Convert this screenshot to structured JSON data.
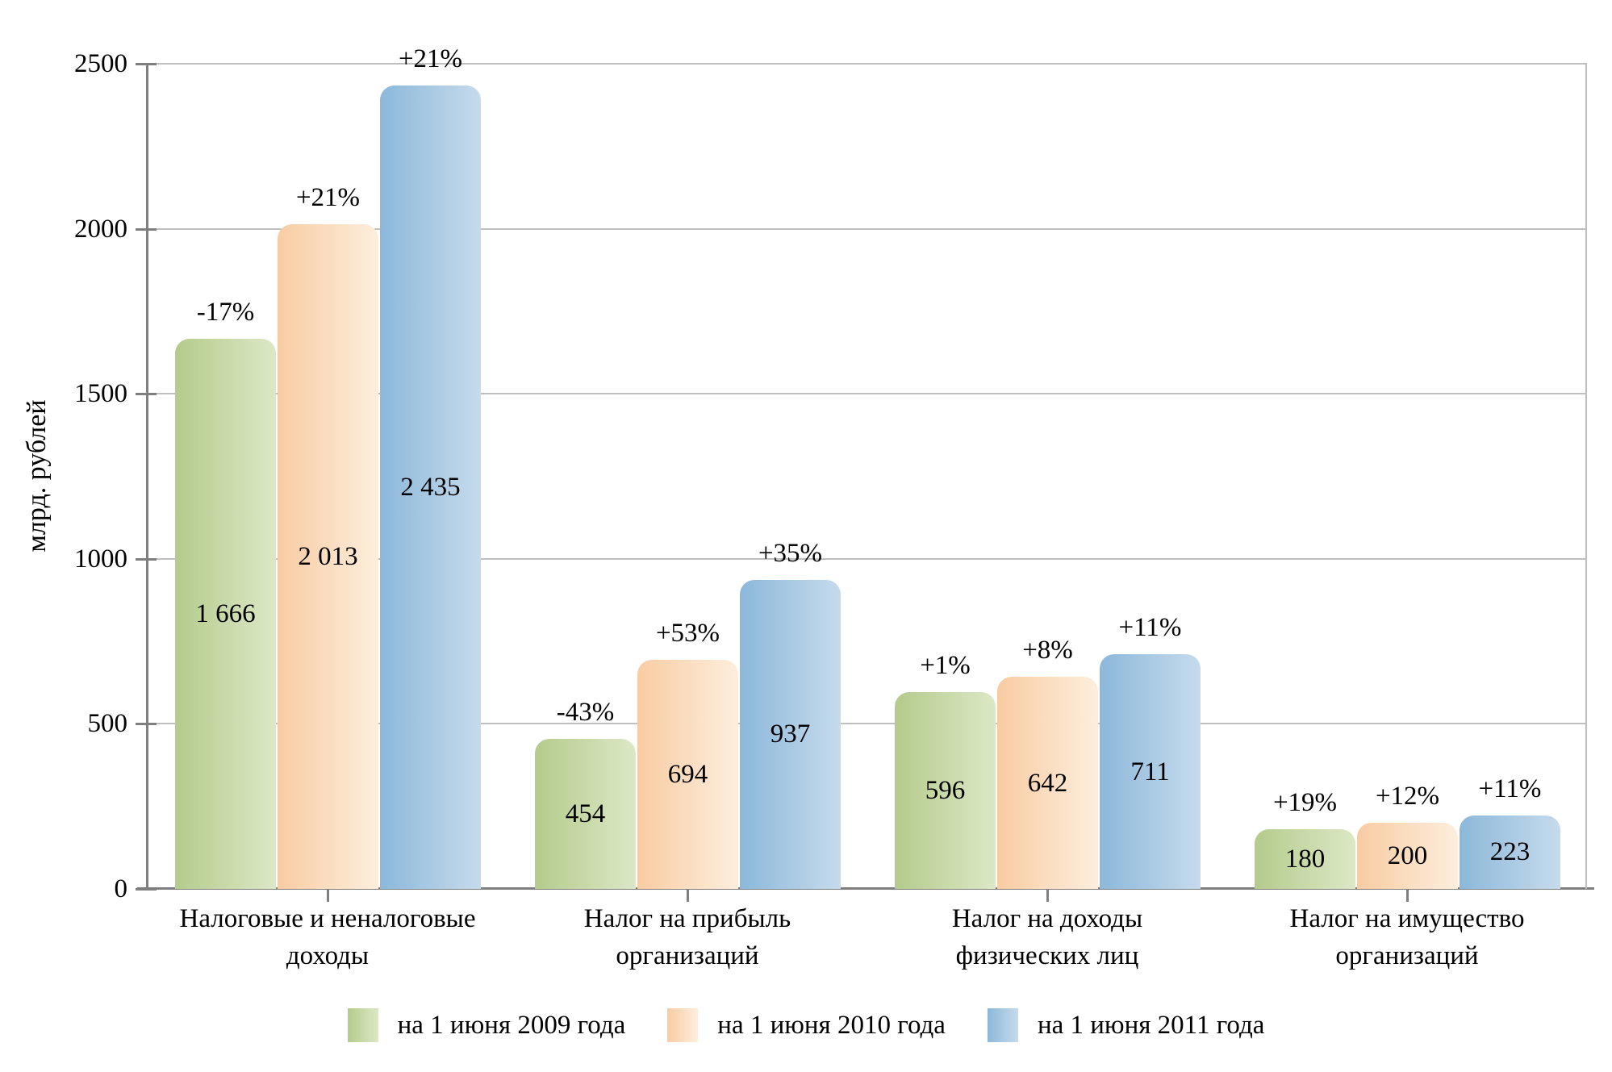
{
  "chart_data": {
    "type": "bar",
    "title": "",
    "ylabel": "млрд. рублей",
    "ylim": [
      0,
      2500
    ],
    "grid": "horizontal",
    "legend_position": "bottom",
    "yticks": [
      {
        "label": "0",
        "value": 0
      },
      {
        "label": "500",
        "value": 500
      },
      {
        "label": "1000",
        "value": 1000
      },
      {
        "label": "1500",
        "value": 1500
      },
      {
        "label": "2000",
        "value": 2000
      },
      {
        "label": "2500",
        "value": 2500
      }
    ],
    "categories": [
      {
        "lines": [
          "Налоговые и неналоговые",
          "доходы"
        ]
      },
      {
        "lines": [
          "Налог на прибыль",
          "организаций"
        ]
      },
      {
        "lines": [
          "Налог на доходы",
          "физических лиц"
        ]
      },
      {
        "lines": [
          "Налог на имущество",
          "организаций"
        ]
      }
    ],
    "series": [
      {
        "name": "на 1 июня 2009 года",
        "values": [
          1666,
          454,
          596,
          180
        ],
        "value_labels": [
          "1 666",
          "454",
          "596",
          "180"
        ],
        "pct_labels": [
          "-17%",
          "-43%",
          "+1%",
          "+19%"
        ],
        "color_from": "#b4cb8c",
        "color_to": "#dce8c6"
      },
      {
        "name": "на 1 июня 2010 года",
        "values": [
          2013,
          694,
          642,
          200
        ],
        "value_labels": [
          "2 013",
          "694",
          "642",
          "200"
        ],
        "pct_labels": [
          "+21%",
          "+53%",
          "+8%",
          "+12%"
        ],
        "color_from": "#f8cca3",
        "color_to": "#fdeedd"
      },
      {
        "name": "на 1 июня 2011 года",
        "values": [
          2435,
          937,
          711,
          223
        ],
        "value_labels": [
          "2 435",
          "937",
          "711",
          "223"
        ],
        "pct_labels": [
          "+21%",
          "+35%",
          "+11%",
          "+11%"
        ],
        "color_from": "#8cb8da",
        "color_to": "#c6dbec"
      }
    ],
    "colors": {
      "gridline": "#bfbfbf",
      "axis": "#7f7f7f",
      "text": "#000000",
      "background": "#ffffff"
    }
  }
}
